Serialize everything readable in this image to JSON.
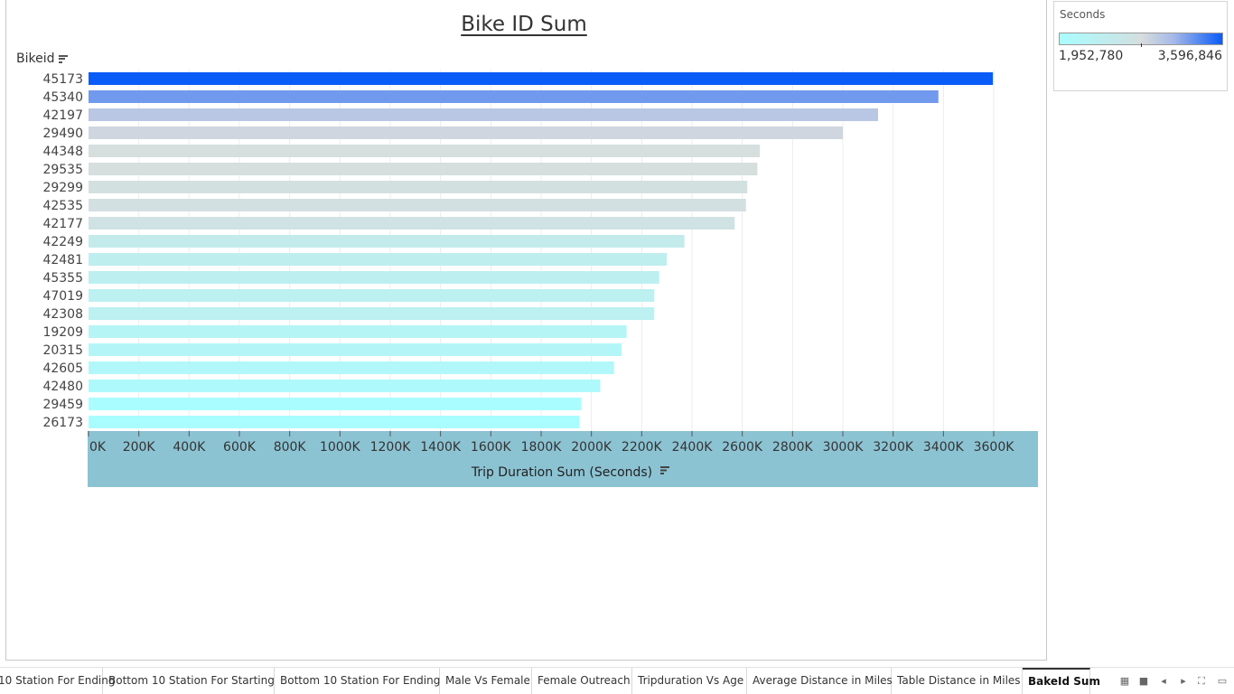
{
  "chart_data": {
    "type": "bar",
    "orientation": "horizontal",
    "title": "Bike ID Sum",
    "ylabel": "Bikeid",
    "xlabel": "Trip Duration Sum (Seconds)",
    "categories": [
      "45173",
      "45340",
      "42197",
      "29490",
      "44348",
      "29535",
      "29299",
      "42535",
      "42177",
      "42249",
      "42481",
      "45355",
      "47019",
      "42308",
      "19209",
      "20315",
      "42605",
      "42480",
      "29459",
      "26173"
    ],
    "values": [
      3596846,
      3380000,
      3140000,
      3000000,
      2670000,
      2660000,
      2620000,
      2615000,
      2570000,
      2370000,
      2300000,
      2270000,
      2250000,
      2250000,
      2140000,
      2120000,
      2090000,
      2035000,
      1960000,
      1952780
    ],
    "xlim": [
      0,
      3700000
    ],
    "xticks": [
      0,
      200000,
      400000,
      600000,
      800000,
      1000000,
      1200000,
      1400000,
      1600000,
      1800000,
      2000000,
      2200000,
      2400000,
      2600000,
      2800000,
      3000000,
      3200000,
      3400000,
      3600000
    ],
    "xtick_labels": [
      "0K",
      "200K",
      "400K",
      "600K",
      "800K",
      "1000K",
      "1200K",
      "1400K",
      "1600K",
      "1800K",
      "2000K",
      "2200K",
      "2400K",
      "2600K",
      "2800K",
      "3000K",
      "3200K",
      "3400K",
      "3600K"
    ],
    "grid": "vertical",
    "color_scale": {
      "field": "Seconds",
      "min": 1952780,
      "max": 3596846,
      "min_label": "1,952,780",
      "max_label": "3,596,846",
      "min_color": "#a9fdff",
      "mid_color": "#d8dddd",
      "max_color": "#0a5cf8"
    },
    "axis_band_color": "#8cc3d3"
  },
  "legend": {
    "title": "Seconds",
    "min_label": "1,952,780",
    "max_label": "3,596,846"
  },
  "tabs": [
    {
      "label": "10 Station For Ending"
    },
    {
      "label": "Bottom 10 Station For Starting"
    },
    {
      "label": "Bottom 10 Station For Ending"
    },
    {
      "label": "Male Vs Female"
    },
    {
      "label": "Female Outreach"
    },
    {
      "label": "Tripduration Vs Age"
    },
    {
      "label": "Average Distance in Miles"
    },
    {
      "label": "Table Distance in Miles"
    },
    {
      "label": "BakeId Sum",
      "active": true
    }
  ],
  "nav_icons": [
    "grid-view-icon",
    "filmstrip-icon",
    "previous-sheet-icon",
    "next-sheet-icon",
    "fullscreen-icon",
    "present-icon"
  ]
}
